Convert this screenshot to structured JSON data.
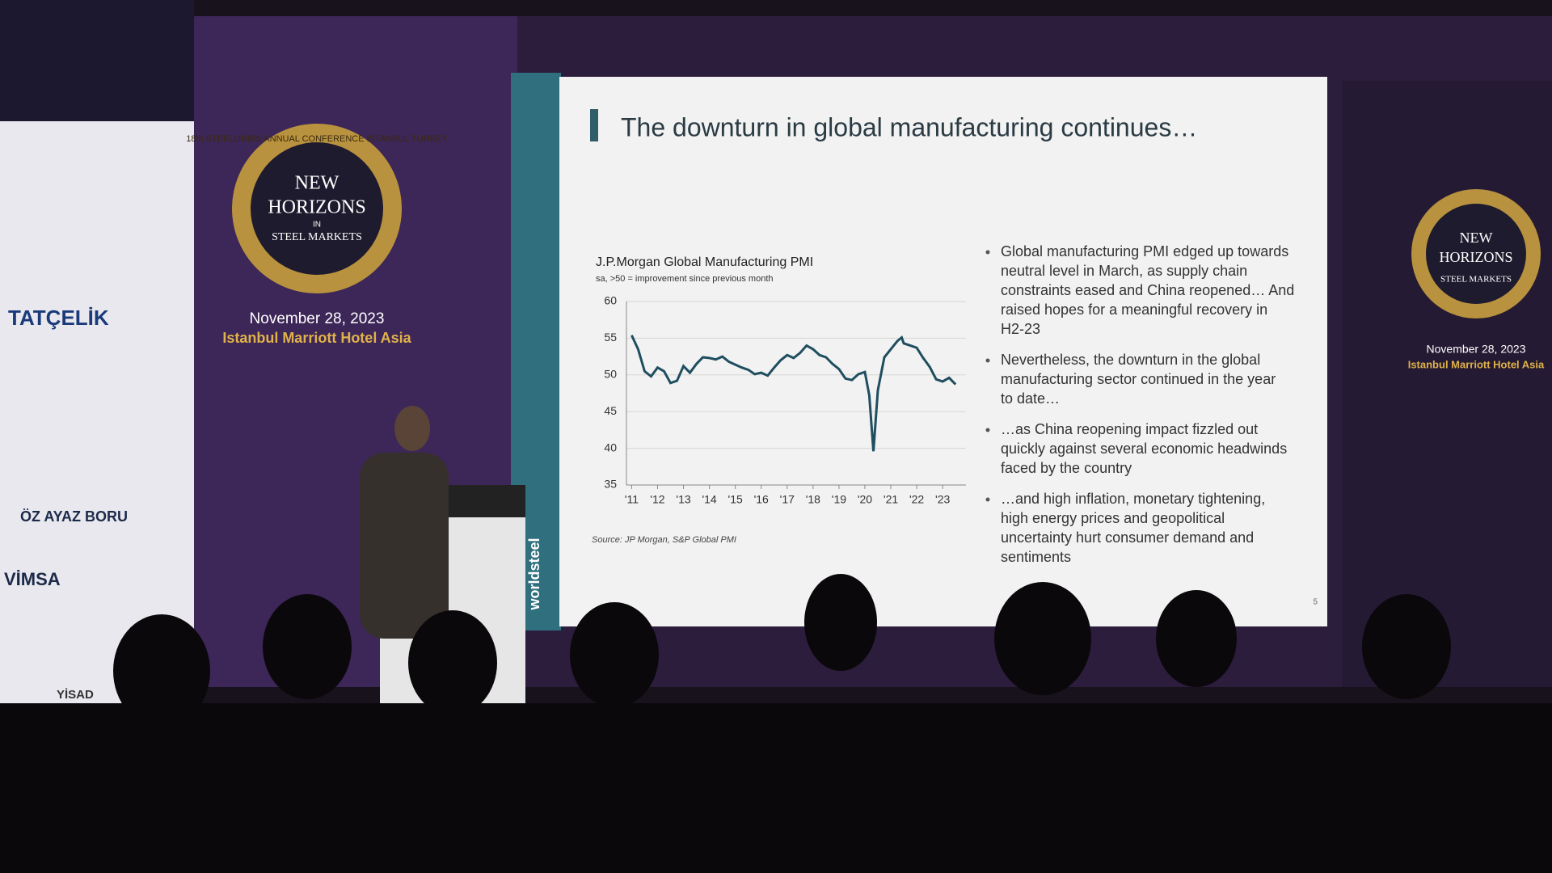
{
  "banner": {
    "logo_ring": "18th STEELORBIS ANNUAL CONFERENCE ISTANBUL TURKEY",
    "logo_lines": [
      "NEW",
      "HORIZONS",
      "IN",
      "STEEL MARKETS"
    ],
    "date": "November 28, 2023",
    "venue": "Istanbul Marriott Hotel Asia"
  },
  "sponsors": [
    "TATÇELİK",
    "ÖZ AYAZ BORU",
    "VİMSA",
    "YİSAD"
  ],
  "podium": "worldsteel",
  "slide": {
    "title": "The downturn in global manufacturing continues…",
    "bullets": [
      [
        "Global manufacturing PMI edged up towards",
        "neutral level in March, as supply chain",
        "constraints eased and China reopened… And",
        "raised hopes for a meaningful recovery in",
        "H2-23"
      ],
      [
        "Nevertheless, the downturn in the global",
        "manufacturing sector continued in the year",
        "to date…"
      ],
      [
        "…as China reopening impact fizzled out",
        "quickly against several economic headwinds",
        "faced by the country"
      ],
      [
        "…and high inflation, monetary tightening,",
        "high energy prices and geopolitical",
        "uncertainty hurt consumer demand and",
        "sentiments"
      ]
    ],
    "source": "Source: JP Morgan, S&P Global PMI",
    "page_number": "5"
  },
  "chart_data": {
    "type": "line",
    "title": "J.P.Morgan Global Manufacturing PMI",
    "subtitle": "sa, >50 = improvement since previous month",
    "x": [
      2011.0,
      2011.25,
      2011.5,
      2011.75,
      2012.0,
      2012.25,
      2012.5,
      2012.75,
      2013.0,
      2013.25,
      2013.5,
      2013.75,
      2014.0,
      2014.25,
      2014.5,
      2014.75,
      2015.0,
      2015.25,
      2015.5,
      2015.75,
      2016.0,
      2016.25,
      2016.5,
      2016.75,
      2017.0,
      2017.25,
      2017.5,
      2017.75,
      2018.0,
      2018.25,
      2018.5,
      2018.75,
      2019.0,
      2019.25,
      2019.5,
      2019.75,
      2020.0,
      2020.17,
      2020.33,
      2020.5,
      2020.75,
      2021.0,
      2021.25,
      2021.42,
      2021.5,
      2021.75,
      2022.0,
      2022.25,
      2022.5,
      2022.75,
      2023.0,
      2023.25,
      2023.5
    ],
    "series": [
      {
        "name": "Global Manufacturing PMI",
        "color": "#1f4e5f",
        "values": [
          55.4,
          53.5,
          50.5,
          49.8,
          51.0,
          50.5,
          48.9,
          49.2,
          51.2,
          50.3,
          51.5,
          52.4,
          52.3,
          52.1,
          52.5,
          51.8,
          51.4,
          51.0,
          50.7,
          50.1,
          50.3,
          49.9,
          51.0,
          52.0,
          52.7,
          52.3,
          53.0,
          54.0,
          53.5,
          52.7,
          52.4,
          51.5,
          50.8,
          49.5,
          49.3,
          50.1,
          50.4,
          47.2,
          39.6,
          47.9,
          52.4,
          53.5,
          54.6,
          55.1,
          54.3,
          54.0,
          53.7,
          52.3,
          51.1,
          49.4,
          49.1,
          49.6,
          48.7
        ]
      }
    ],
    "xlim": [
      2010.8,
      2023.9
    ],
    "xticks": [
      {
        "value": 2011,
        "label": "'11"
      },
      {
        "value": 2012,
        "label": "'12"
      },
      {
        "value": 2013,
        "label": "'13"
      },
      {
        "value": 2014,
        "label": "'14"
      },
      {
        "value": 2015,
        "label": "'15"
      },
      {
        "value": 2016,
        "label": "'16"
      },
      {
        "value": 2017,
        "label": "'17"
      },
      {
        "value": 2018,
        "label": "'18"
      },
      {
        "value": 2019,
        "label": "'19"
      },
      {
        "value": 2020,
        "label": "'20"
      },
      {
        "value": 2021,
        "label": "'21"
      },
      {
        "value": 2022,
        "label": "'22"
      },
      {
        "value": 2023,
        "label": "'23"
      }
    ],
    "ylim": [
      35,
      60
    ],
    "yticks": [
      35,
      40,
      45,
      50,
      55,
      60
    ],
    "grid": true
  }
}
